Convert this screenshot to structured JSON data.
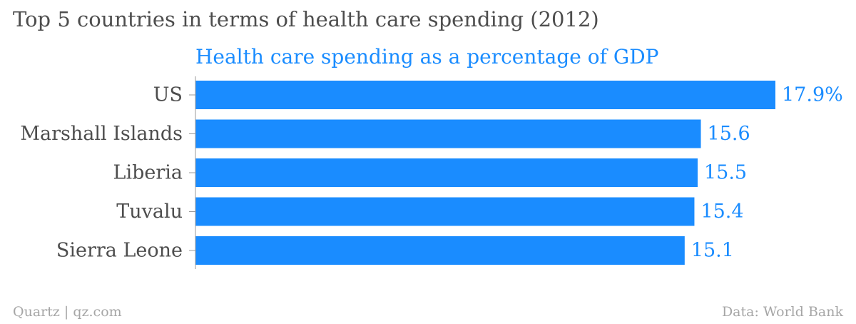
{
  "header": {
    "title": "Top 5 countries in terms of health care spending (2012)",
    "subtitle": "Health care spending as a percentage of GDP"
  },
  "footer": {
    "source_left": "Quartz | qz.com",
    "source_right": "Data: World Bank"
  },
  "colors": {
    "bar": "#1a8cff",
    "label": "#4d4d4d",
    "value": "#1a8cff",
    "axis": "#999999"
  },
  "chart_data": {
    "type": "bar",
    "orientation": "horizontal",
    "title": "Top 5 countries in terms of health care spending (2012)",
    "subtitle": "Health care spending as a percentage of GDP",
    "categories": [
      "US",
      "Marshall Islands",
      "Liberia",
      "Tuvalu",
      "Sierra Leone"
    ],
    "values": [
      17.9,
      15.6,
      15.5,
      15.4,
      15.1
    ],
    "value_labels": [
      "17.9%",
      "15.6",
      "15.5",
      "15.4",
      "15.1"
    ],
    "xlim": [
      0,
      17.9
    ],
    "xlabel": "",
    "ylabel": "",
    "grid": false,
    "legend": "none"
  }
}
